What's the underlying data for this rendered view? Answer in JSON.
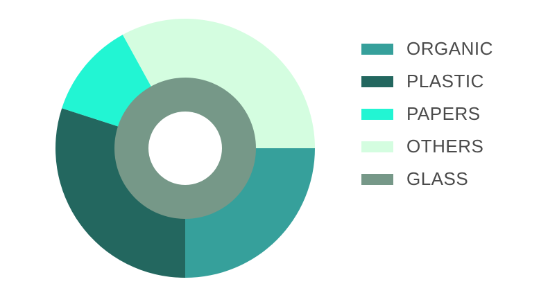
{
  "chart_data": {
    "type": "pie",
    "legend_position": "right",
    "series": [
      {
        "name": "ORGANIC",
        "value": 25,
        "color": "#36a09b"
      },
      {
        "name": "PLASTIC",
        "value": 30,
        "color": "#23675f"
      },
      {
        "name": "PAPERS",
        "value": 12,
        "color": "#22f5d3"
      },
      {
        "name": "OTHERS",
        "value": 33,
        "color": "#d4fde0"
      },
      {
        "name": "GLASS",
        "value": 100,
        "color": "#769888"
      }
    ]
  }
}
